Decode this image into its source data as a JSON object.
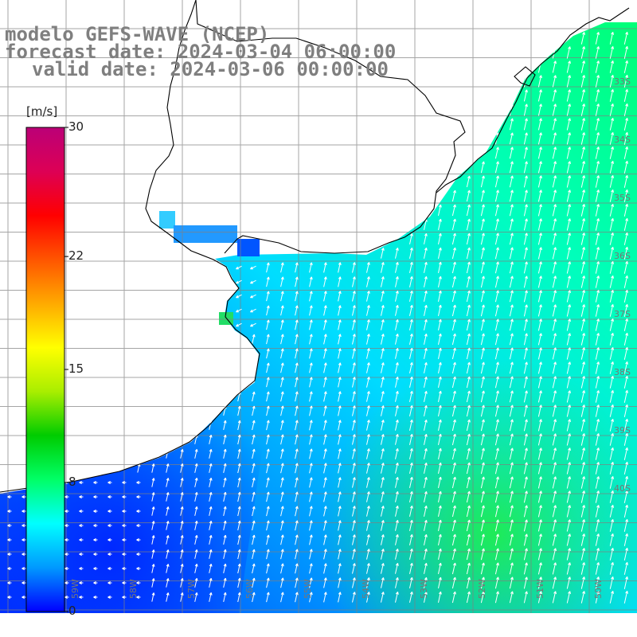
{
  "title": {
    "model": "modelo GEFS-WAVE (NCEP)",
    "forecast": "forecast date: 2024-03-04 06:00:00",
    "valid": "valid date: 2024-03-06 00:00:00"
  },
  "colorbar": {
    "unit": "[m/s]",
    "min": 0,
    "max": 30,
    "labels": [
      "30",
      "22",
      "15",
      "8",
      "0"
    ],
    "label_values": [
      30,
      22,
      15,
      8,
      0
    ],
    "colors": [
      "#0000ff",
      "#0099ff",
      "#00ffff",
      "#00ff66",
      "#00cc00",
      "#aaee00",
      "#ffff00",
      "#ffaa00",
      "#ff5500",
      "#ff0000",
      "#dd0055",
      "#bb0077"
    ]
  },
  "grid": {
    "lat_labels": [
      "33S",
      "34S",
      "35S",
      "36S",
      "37S",
      "38S",
      "39S",
      "40S"
    ],
    "lon_labels": [
      "59W",
      "58W",
      "57W",
      "56W",
      "55W",
      "54W",
      "53W",
      "52W",
      "51W",
      "50W"
    ]
  },
  "colors": {
    "land": "#ffffff",
    "coast": "#000000",
    "grid_line": "#808080",
    "arrow": "#ffffff",
    "title_text": "#7f7f7f"
  }
}
